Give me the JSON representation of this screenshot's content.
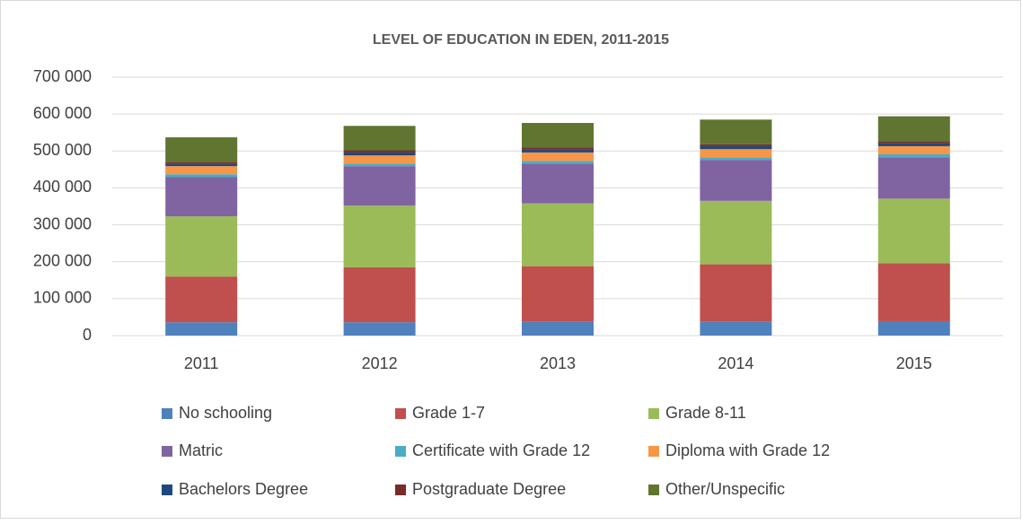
{
  "chart_data": {
    "type": "stacked_bar",
    "title": "LEVEL OF EDUCATION IN EDEN, 2011-2015",
    "categories": [
      "2011",
      "2012",
      "2013",
      "2014",
      "2015"
    ],
    "series": [
      {
        "name": "No schooling",
        "color": "#4f81bd",
        "values": [
          36000,
          36000,
          37000,
          38000,
          39000
        ]
      },
      {
        "name": "Grade 1-7",
        "color": "#c0504d",
        "values": [
          124000,
          149000,
          151000,
          155000,
          157000
        ]
      },
      {
        "name": "Grade 8-11",
        "color": "#9bbb59",
        "values": [
          163000,
          167000,
          170000,
          172000,
          175000
        ]
      },
      {
        "name": "Matric",
        "color": "#8064a2",
        "values": [
          107000,
          107000,
          108000,
          111000,
          112000
        ]
      },
      {
        "name": "Certificate with Grade 12",
        "color": "#4bacc6",
        "values": [
          7000,
          7000,
          7000,
          7000,
          8000
        ]
      },
      {
        "name": "Diploma with Grade 12",
        "color": "#f79646",
        "values": [
          22000,
          22000,
          23000,
          22000,
          22000
        ]
      },
      {
        "name": "Bachelors Degree",
        "color": "#1f497d",
        "values": [
          6000,
          8000,
          8000,
          8000,
          8000
        ]
      },
      {
        "name": "Postgraduate Degree",
        "color": "#772c2a",
        "values": [
          5000,
          6000,
          6000,
          5000,
          5000
        ]
      },
      {
        "name": "Other/Unspecific",
        "color": "#5f7530",
        "values": [
          67000,
          66000,
          66000,
          67000,
          68000
        ]
      }
    ],
    "ylim": [
      0,
      700000
    ],
    "yticks": [
      0,
      {
        "value": 100000,
        "label": "100 000"
      },
      {
        "value": 200000,
        "label": "200 000"
      },
      {
        "value": 300000,
        "label": "300 000"
      },
      {
        "value": 400000,
        "label": "400 000"
      },
      {
        "value": 500000,
        "label": "500 000"
      },
      {
        "value": 600000,
        "label": "600 000"
      },
      {
        "value": 700000,
        "label": "700 000"
      }
    ],
    "grid": true,
    "legend": "bottom"
  }
}
